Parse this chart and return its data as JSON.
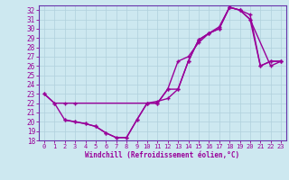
{
  "bg_color": "#cde8f0",
  "line_color": "#990099",
  "grid_color": "#b0d0dc",
  "spine_color": "#6633aa",
  "xlabel": "Windchill (Refroidissement éolien,°C)",
  "xlim": [
    -0.5,
    23.5
  ],
  "ylim": [
    18,
    32.5
  ],
  "xticks": [
    0,
    1,
    2,
    3,
    4,
    5,
    6,
    7,
    8,
    9,
    10,
    11,
    12,
    13,
    14,
    15,
    16,
    17,
    18,
    19,
    20,
    21,
    22,
    23
  ],
  "yticks": [
    18,
    19,
    20,
    21,
    22,
    23,
    24,
    25,
    26,
    27,
    28,
    29,
    30,
    31,
    32
  ],
  "line1_x": [
    0,
    1,
    2,
    3,
    4,
    5,
    6,
    7,
    8,
    9,
    10,
    11,
    12,
    13,
    14,
    15,
    16,
    17,
    18,
    19,
    20,
    21,
    22,
    23
  ],
  "line1_y": [
    23.0,
    22.0,
    20.2,
    20.0,
    19.8,
    19.5,
    18.8,
    18.3,
    18.3,
    20.2,
    22.0,
    22.0,
    23.5,
    26.5,
    27.0,
    28.5,
    29.5,
    30.2,
    32.3,
    32.0,
    31.5,
    26.0,
    26.5,
    26.5
  ],
  "line2_x": [
    0,
    1,
    2,
    3,
    10,
    11,
    12,
    13,
    14,
    15,
    16,
    17,
    18,
    19,
    20,
    22,
    23
  ],
  "line2_y": [
    23.0,
    22.0,
    22.0,
    22.0,
    22.0,
    22.2,
    22.5,
    23.5,
    26.5,
    28.8,
    29.5,
    30.0,
    32.3,
    32.0,
    31.0,
    26.0,
    26.5
  ],
  "line3_x": [
    2,
    3,
    4,
    5,
    6,
    7,
    8,
    9,
    10,
    11,
    12,
    13,
    14,
    15,
    16,
    17,
    18,
    19,
    20,
    21,
    22,
    23
  ],
  "line3_y": [
    20.2,
    20.0,
    19.8,
    19.5,
    18.8,
    18.3,
    18.3,
    20.2,
    22.0,
    22.0,
    23.5,
    23.5,
    26.5,
    28.8,
    29.5,
    30.0,
    32.3,
    32.0,
    31.0,
    26.0,
    26.5,
    26.5
  ]
}
